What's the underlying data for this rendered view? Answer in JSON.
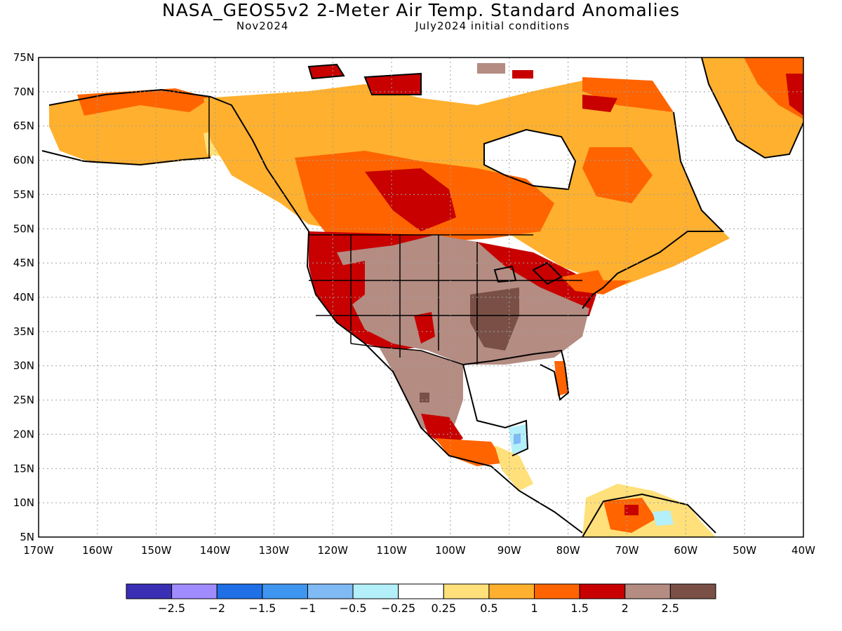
{
  "title": "NASA_GEOS5v2 2-Meter Air Temp. Standard Anomalies",
  "subtitle_left": "Nov2024",
  "subtitle_right": "July2024 initial conditions",
  "lat_labels": [
    "75N",
    "70N",
    "65N",
    "60N",
    "55N",
    "50N",
    "45N",
    "40N",
    "35N",
    "30N",
    "25N",
    "20N",
    "15N",
    "10N",
    "5N"
  ],
  "lon_labels": [
    "170W",
    "160W",
    "150W",
    "140W",
    "130W",
    "120W",
    "110W",
    "100W",
    "90W",
    "80W",
    "70W",
    "60W",
    "50W",
    "40W"
  ],
  "colorbar": {
    "colors": [
      "#3a2fb4",
      "#a08cff",
      "#1f6fe6",
      "#3f96f0",
      "#7fbaf4",
      "#b4f0fa",
      "#ffffff",
      "#ffe07a",
      "#ffb02e",
      "#ff6400",
      "#c80000",
      "#b48c82",
      "#7a5046"
    ],
    "labels": [
      "−2.5",
      "−2",
      "−1.5",
      "−1",
      "−0.5",
      "−0.25",
      "0.25",
      "0.5",
      "1",
      "1.5",
      "2",
      "2.5"
    ]
  }
}
